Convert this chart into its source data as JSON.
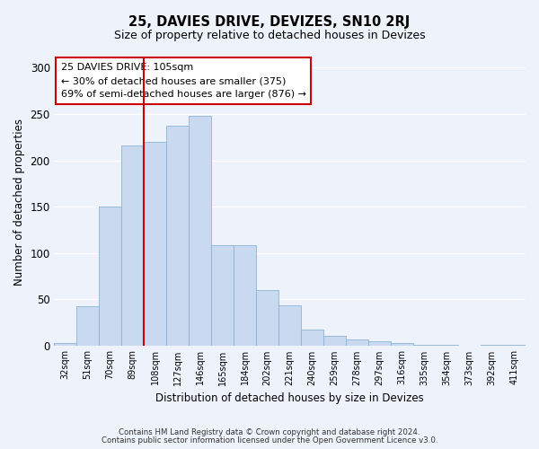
{
  "title": "25, DAVIES DRIVE, DEVIZES, SN10 2RJ",
  "subtitle": "Size of property relative to detached houses in Devizes",
  "xlabel": "Distribution of detached houses by size in Devizes",
  "ylabel": "Number of detached properties",
  "bar_labels": [
    "32sqm",
    "51sqm",
    "70sqm",
    "89sqm",
    "108sqm",
    "127sqm",
    "146sqm",
    "165sqm",
    "184sqm",
    "202sqm",
    "221sqm",
    "240sqm",
    "259sqm",
    "278sqm",
    "297sqm",
    "316sqm",
    "335sqm",
    "354sqm",
    "373sqm",
    "392sqm",
    "411sqm"
  ],
  "bar_values": [
    3,
    43,
    150,
    216,
    220,
    237,
    248,
    109,
    109,
    60,
    44,
    18,
    11,
    7,
    5,
    3,
    1,
    1,
    0,
    1,
    1
  ],
  "bar_color": "#c9d9f0",
  "bar_edge_color": "#8ab4d8",
  "vline_color": "#cc0000",
  "vline_index": 4,
  "ylim": [
    0,
    310
  ],
  "yticks": [
    0,
    50,
    100,
    150,
    200,
    250,
    300
  ],
  "annotation_title": "25 DAVIES DRIVE: 105sqm",
  "annotation_line1": "← 30% of detached houses are smaller (375)",
  "annotation_line2": "69% of semi-detached houses are larger (876) →",
  "annotation_box_color": "#ffffff",
  "annotation_box_edge": "#cc0000",
  "footer_line1": "Contains HM Land Registry data © Crown copyright and database right 2024.",
  "footer_line2": "Contains public sector information licensed under the Open Government Licence v3.0.",
  "background_color": "#eef2fb"
}
